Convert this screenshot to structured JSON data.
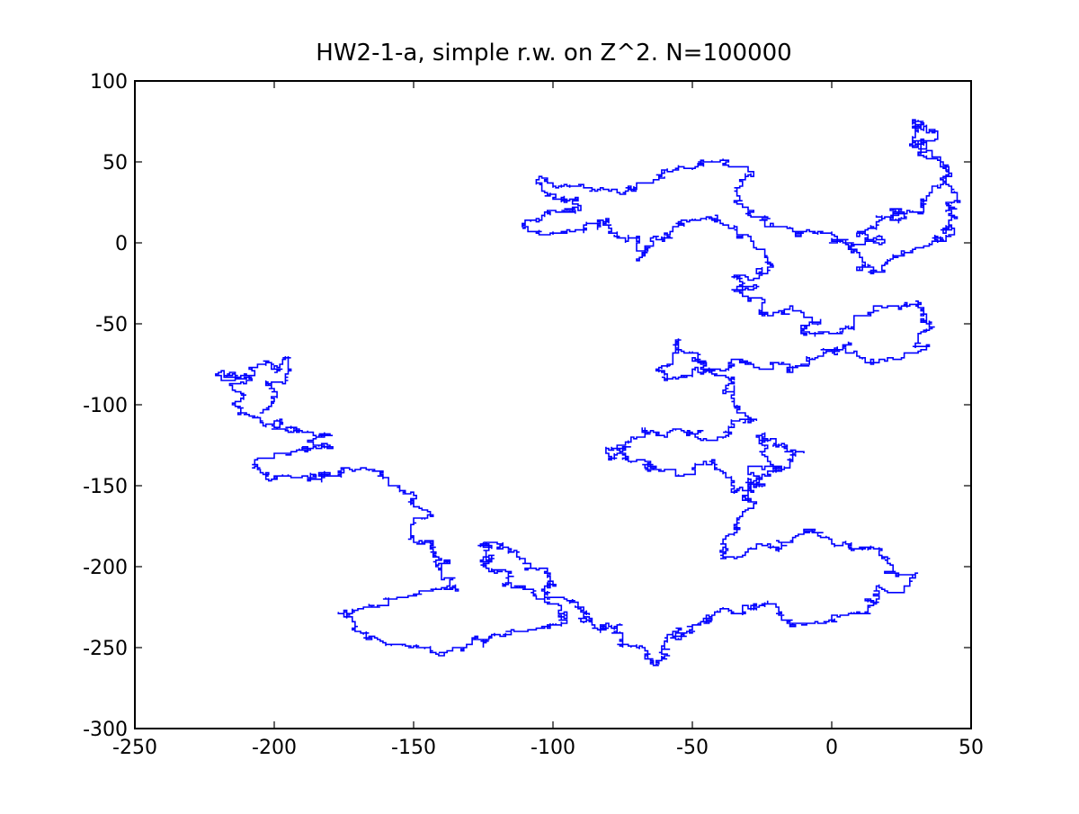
{
  "chart_data": {
    "type": "line",
    "title": "HW2-1-a, simple r.w. on Z^2. N=100000",
    "xlabel": "",
    "ylabel": "",
    "xlim": [
      -250,
      50
    ],
    "ylim": [
      -300,
      100
    ],
    "xticks": [
      -250,
      -200,
      -150,
      -100,
      -50,
      0,
      50
    ],
    "yticks": [
      -300,
      -250,
      -200,
      -150,
      -100,
      -50,
      0,
      50,
      100
    ],
    "xtick_labels": [
      "-250",
      "-200",
      "-150",
      "-100",
      "-50",
      "0",
      "50"
    ],
    "ytick_labels": [
      "-300",
      "-250",
      "-200",
      "-150",
      "-100",
      "-50",
      "0",
      "50",
      "100"
    ],
    "grid": false,
    "legend": "none",
    "series": [
      {
        "color": "#0000ff",
        "steps": 100000,
        "approximate_path": [
          [
            0,
            0
          ],
          [
            10,
            5
          ],
          [
            25,
            15
          ],
          [
            35,
            30
          ],
          [
            30,
            60
          ],
          [
            30,
            75
          ],
          [
            40,
            40
          ],
          [
            45,
            15
          ],
          [
            35,
            0
          ],
          [
            20,
            -10
          ],
          [
            10,
            -15
          ],
          [
            -5,
            5
          ],
          [
            -20,
            10
          ],
          [
            -35,
            25
          ],
          [
            -30,
            45
          ],
          [
            -45,
            50
          ],
          [
            -60,
            40
          ],
          [
            -75,
            30
          ],
          [
            -95,
            35
          ],
          [
            -105,
            40
          ],
          [
            -90,
            20
          ],
          [
            -110,
            10
          ],
          [
            -100,
            5
          ],
          [
            -80,
            15
          ],
          [
            -70,
            -10
          ],
          [
            -60,
            5
          ],
          [
            -45,
            15
          ],
          [
            -30,
            5
          ],
          [
            -25,
            -20
          ],
          [
            -35,
            -30
          ],
          [
            -25,
            -45
          ],
          [
            -15,
            -40
          ],
          [
            -5,
            -55
          ],
          [
            10,
            -45
          ],
          [
            25,
            -40
          ],
          [
            35,
            -50
          ],
          [
            30,
            -65
          ],
          [
            15,
            -75
          ],
          [
            5,
            -65
          ],
          [
            -5,
            -70
          ],
          [
            -15,
            -80
          ],
          [
            -30,
            -75
          ],
          [
            -45,
            -80
          ],
          [
            -60,
            -85
          ],
          [
            -55,
            -60
          ],
          [
            -45,
            -75
          ],
          [
            -35,
            -90
          ],
          [
            -30,
            -110
          ],
          [
            -40,
            -120
          ],
          [
            -55,
            -115
          ],
          [
            -70,
            -120
          ],
          [
            -80,
            -130
          ],
          [
            -65,
            -140
          ],
          [
            -45,
            -135
          ],
          [
            -35,
            -155
          ],
          [
            -20,
            -140
          ],
          [
            -10,
            -130
          ],
          [
            -25,
            -120
          ],
          [
            -30,
            -160
          ],
          [
            -35,
            -180
          ],
          [
            -40,
            -195
          ],
          [
            -20,
            -190
          ],
          [
            -5,
            -180
          ],
          [
            5,
            -185
          ],
          [
            20,
            -195
          ],
          [
            30,
            -205
          ],
          [
            15,
            -215
          ],
          [
            0,
            -230
          ],
          [
            -15,
            -235
          ],
          [
            -30,
            -225
          ],
          [
            -45,
            -230
          ],
          [
            -55,
            -245
          ],
          [
            -65,
            -260
          ],
          [
            -70,
            -250
          ],
          [
            -80,
            -235
          ],
          [
            -90,
            -225
          ],
          [
            -105,
            -220
          ],
          [
            -115,
            -210
          ],
          [
            -125,
            -200
          ],
          [
            -120,
            -185
          ],
          [
            -110,
            -195
          ],
          [
            -100,
            -210
          ],
          [
            -95,
            -235
          ],
          [
            -110,
            -240
          ],
          [
            -125,
            -245
          ],
          [
            -140,
            -255
          ],
          [
            -150,
            -250
          ],
          [
            -165,
            -245
          ],
          [
            -175,
            -230
          ],
          [
            -160,
            -220
          ],
          [
            -145,
            -215
          ],
          [
            -135,
            -215
          ],
          [
            -140,
            -195
          ],
          [
            -150,
            -185
          ],
          [
            -145,
            -170
          ],
          [
            -150,
            -155
          ],
          [
            -160,
            -145
          ],
          [
            -175,
            -140
          ],
          [
            -190,
            -145
          ],
          [
            -205,
            -140
          ],
          [
            -195,
            -130
          ],
          [
            -180,
            -125
          ],
          [
            -195,
            -115
          ],
          [
            -205,
            -110
          ],
          [
            -215,
            -100
          ],
          [
            -210,
            -85
          ],
          [
            -220,
            -80
          ],
          [
            -205,
            -75
          ],
          [
            -195,
            -70
          ],
          [
            -200,
            -90
          ],
          [
            -205,
            -105
          ]
        ]
      }
    ]
  }
}
